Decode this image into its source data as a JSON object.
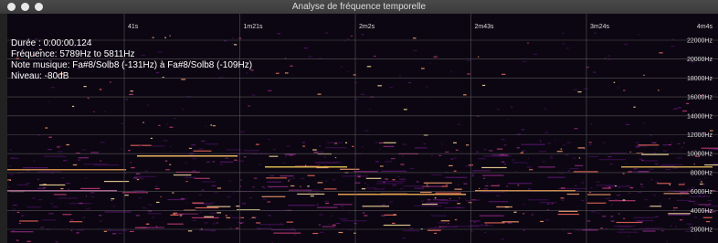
{
  "window": {
    "title": "Analyse de fréquence temporelle"
  },
  "time_axis": [
    "41s",
    "1m21s",
    "2m2s",
    "2m43s",
    "3m24s",
    "4m4s"
  ],
  "frequency_axis": [
    "22000Hz",
    "20000Hz",
    "18000Hz",
    "16000Hz",
    "14000Hz",
    "12000Hz",
    "10000Hz",
    "8000Hz",
    "6000Hz",
    "4000Hz",
    "2000Hz"
  ],
  "info": [
    "Durée : 0:00:00.124",
    "Fréquence: 5789Hz to 5811Hz",
    "Note musique: Fa#8/Solb8 (-131Hz) à Fa#8/Solb8 (-109Hz)",
    "Niveau: -80dB"
  ]
}
